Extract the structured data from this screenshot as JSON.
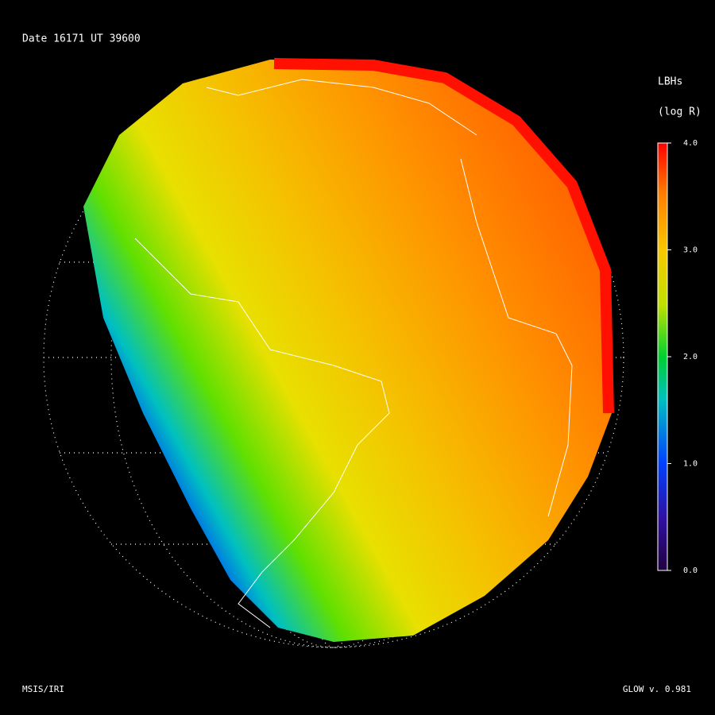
{
  "header": {
    "date": "Date 16171  UT 39600"
  },
  "colorbar": {
    "title": "LBHs",
    "unit": "(log R)",
    "lim": [
      0,
      4
    ],
    "ticks": [
      {
        "value": 0,
        "label": "0.0"
      },
      {
        "value": 1,
        "label": "1.0"
      },
      {
        "value": 2,
        "label": "2.0"
      },
      {
        "value": 3,
        "label": "3.0"
      },
      {
        "value": 4,
        "label": "4.0"
      }
    ]
  },
  "footer": {
    "left": "MSIS/IRI",
    "right": "GLOW v. 0.981"
  }
}
